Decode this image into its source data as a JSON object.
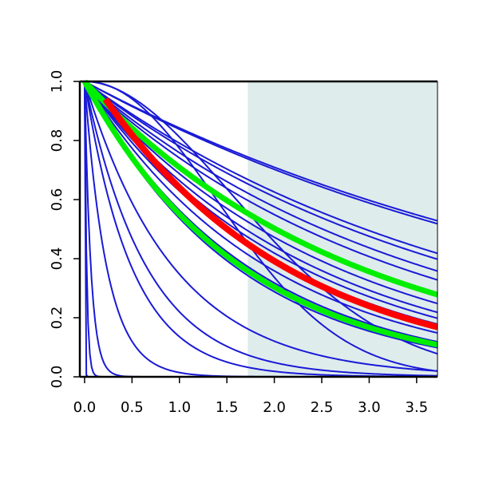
{
  "chart_data": {
    "type": "line",
    "title": "",
    "xlabel": "",
    "ylabel": "",
    "xlim": [
      -0.05,
      3.72
    ],
    "ylim": [
      0.0,
      1.0
    ],
    "x_ticks": [
      "0.0",
      "0.5",
      "1.0",
      "1.5",
      "2.0",
      "2.5",
      "3.0",
      "3.5"
    ],
    "y_ticks": [
      "0.0",
      "0.2",
      "0.4",
      "0.6",
      "0.8",
      "1.0"
    ],
    "x_tick_values": [
      0,
      0.5,
      1,
      1.5,
      2,
      2.5,
      3,
      3.5
    ],
    "y_tick_values": [
      0,
      0.2,
      0.4,
      0.6,
      0.8,
      1.0
    ],
    "grid": false,
    "legend": "none",
    "shaded_region": {
      "x_from": 1.72,
      "x_to": 3.72,
      "color": "#dfecec"
    },
    "colors": {
      "blue": "#1a1ad6",
      "red": "#ff0000",
      "green": "#00ee00",
      "axis": "#000000"
    },
    "series": [
      {
        "color": "blue",
        "kind": "exp",
        "x_start": 0,
        "y": [
          [
            0,
            1
          ],
          [
            0.05,
            0.0
          ]
        ]
      },
      {
        "color": "blue",
        "kind": "exp",
        "x_start": 0,
        "y": [
          [
            0,
            1
          ],
          [
            0.1,
            0.01
          ]
        ]
      },
      {
        "color": "blue",
        "kind": "exp",
        "x_start": 0,
        "y": [
          [
            0,
            1
          ],
          [
            0.2,
            0.05
          ]
        ]
      },
      {
        "color": "blue",
        "kind": "exp",
        "x_start": 0,
        "y": [
          [
            0,
            1
          ],
          [
            0.5,
            0.12
          ]
        ]
      },
      {
        "color": "blue",
        "kind": "exp",
        "x_start": 0,
        "y": [
          [
            0,
            1
          ],
          [
            1.0,
            0.22
          ]
        ]
      },
      {
        "color": "blue",
        "kind": "exp",
        "x_start": 0,
        "y": [
          [
            0,
            1
          ],
          [
            1.5,
            0.05
          ]
        ]
      },
      {
        "color": "blue",
        "kind": "exp",
        "x_start": 0,
        "y": [
          [
            0,
            1
          ],
          [
            3.7,
            0.02
          ]
        ]
      },
      {
        "color": "blue",
        "kind": "exp",
        "x_start": 0,
        "y": [
          [
            0,
            1
          ],
          [
            3.7,
            0.1
          ]
        ]
      },
      {
        "color": "blue",
        "kind": "exp",
        "x_start": 0,
        "y": [
          [
            0,
            1
          ],
          [
            3.7,
            0.12
          ]
        ]
      },
      {
        "color": "blue",
        "kind": "exp",
        "x_start": 0,
        "y": [
          [
            0,
            1
          ],
          [
            3.7,
            0.15
          ]
        ]
      },
      {
        "color": "blue",
        "kind": "exp",
        "x_start": 0,
        "y": [
          [
            0,
            1
          ],
          [
            3.7,
            0.18
          ]
        ]
      },
      {
        "color": "blue",
        "kind": "exp",
        "x_start": 0,
        "y": [
          [
            0,
            1
          ],
          [
            3.7,
            0.2
          ]
        ]
      },
      {
        "color": "blue",
        "kind": "exp",
        "x_start": 0,
        "y": [
          [
            0,
            1
          ],
          [
            3.7,
            0.22
          ]
        ]
      },
      {
        "color": "blue",
        "kind": "exp",
        "x_start": 0,
        "y": [
          [
            0,
            1
          ],
          [
            3.7,
            0.25
          ]
        ]
      },
      {
        "color": "blue",
        "kind": "exp",
        "x_start": 0,
        "y": [
          [
            0,
            1
          ],
          [
            3.7,
            0.28
          ]
        ]
      },
      {
        "color": "blue",
        "kind": "exp",
        "x_start": 0,
        "y": [
          [
            0,
            1
          ],
          [
            3.7,
            0.33
          ]
        ]
      },
      {
        "color": "blue",
        "kind": "exp",
        "x_start": 0,
        "y": [
          [
            0,
            1
          ],
          [
            3.7,
            0.36
          ]
        ]
      },
      {
        "color": "blue",
        "kind": "exp",
        "x_start": 0,
        "y": [
          [
            0,
            1
          ],
          [
            3.7,
            0.4
          ]
        ]
      },
      {
        "color": "blue",
        "kind": "exp",
        "x_start": 0,
        "y": [
          [
            0,
            1
          ],
          [
            3.7,
            0.42
          ]
        ]
      },
      {
        "color": "blue",
        "kind": "exp",
        "x_start": 0,
        "y": [
          [
            0,
            1
          ],
          [
            3.7,
            0.52
          ]
        ]
      },
      {
        "color": "blue",
        "kind": "exp",
        "x_start": 0,
        "y": [
          [
            0,
            1
          ],
          [
            3.7,
            0.53
          ]
        ]
      },
      {
        "color": "blue",
        "kind": "weibull",
        "x_start": 0,
        "y": [
          [
            0,
            1
          ],
          [
            1.6,
            0.6
          ],
          [
            3.7,
            0.08
          ]
        ]
      },
      {
        "color": "blue",
        "kind": "weibull",
        "x_start": 0,
        "y": [
          [
            0,
            1
          ],
          [
            1.5,
            0.55
          ],
          [
            3.7,
            0.02
          ]
        ]
      },
      {
        "color": "green",
        "kind": "exp",
        "x_start": 0,
        "y": [
          [
            0,
            1
          ],
          [
            3.7,
            0.28
          ]
        ]
      },
      {
        "color": "green",
        "kind": "exp",
        "x_start": 0,
        "y": [
          [
            0,
            1
          ],
          [
            3.7,
            0.11
          ]
        ]
      },
      {
        "color": "red",
        "kind": "exp",
        "x_start": 0.22,
        "y": [
          [
            0.22,
            0.94
          ],
          [
            3.7,
            0.17
          ]
        ]
      }
    ]
  }
}
